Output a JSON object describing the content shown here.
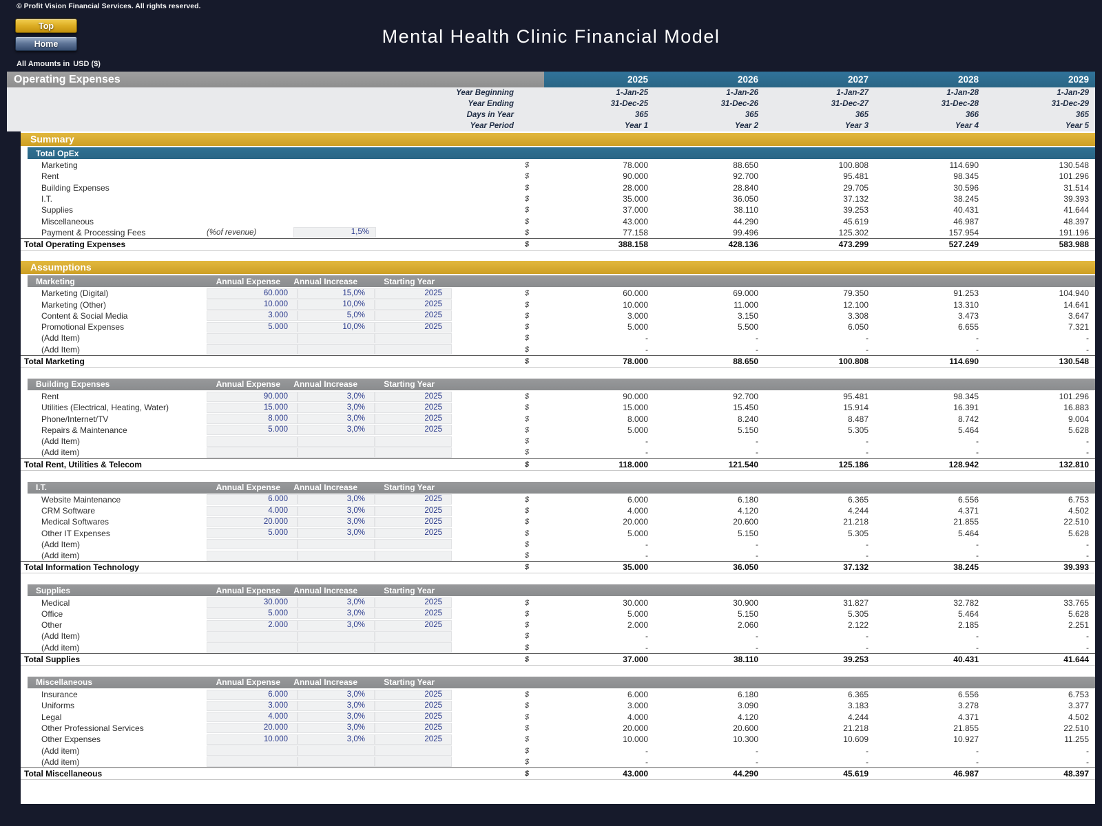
{
  "header": {
    "copyright": "© Profit Vision Financial Services. All rights reserved.",
    "title": "Mental Health Clinic Financial Model",
    "buttons": [
      {
        "label": "Top"
      },
      {
        "label": "Home"
      }
    ],
    "amounts_note_prefix": "All Amounts in",
    "currency": "USD ($)"
  },
  "colors": {
    "navy_background": "#161a2b",
    "gold_section_bar": "#d4a62c",
    "teal_bar": "#2d6d8e",
    "gray_bar": "#8f9193",
    "year_band_gray": "#e9eaec",
    "input_cell_fill": "#f0f1f2",
    "input_text_blue": "#29398c",
    "top_button_gold": "#ddae24",
    "home_button_blue": "#5f7598"
  },
  "sheet": {
    "section_title": "Operating Expenses",
    "currency_symbol": "$",
    "years": [
      "2025",
      "2026",
      "2027",
      "2028",
      "2029"
    ],
    "year_info_rows": [
      {
        "label": "Year Beginning",
        "values": [
          "1-Jan-25",
          "1-Jan-26",
          "1-Jan-27",
          "1-Jan-28",
          "1-Jan-29"
        ]
      },
      {
        "label": "Year Ending",
        "values": [
          "31-Dec-25",
          "31-Dec-26",
          "31-Dec-27",
          "31-Dec-28",
          "31-Dec-29"
        ]
      },
      {
        "label": "Days in Year",
        "values": [
          "365",
          "365",
          "365",
          "366",
          "365"
        ]
      },
      {
        "label": "Year Period",
        "values": [
          "Year 1",
          "Year 2",
          "Year 3",
          "Year 4",
          "Year 5"
        ]
      }
    ],
    "summary": {
      "title": "Summary",
      "subheader": "Total OpEx",
      "rows": [
        {
          "label": "Marketing",
          "values": [
            "78.000",
            "88.650",
            "100.808",
            "114.690",
            "130.548"
          ]
        },
        {
          "label": "Rent",
          "values": [
            "90.000",
            "92.700",
            "95.481",
            "98.345",
            "101.296"
          ]
        },
        {
          "label": "Building Expenses",
          "values": [
            "28.000",
            "28.840",
            "29.705",
            "30.596",
            "31.514"
          ]
        },
        {
          "label": "I.T.",
          "values": [
            "35.000",
            "36.050",
            "37.132",
            "38.245",
            "39.393"
          ]
        },
        {
          "label": "Supplies",
          "values": [
            "37.000",
            "38.110",
            "39.253",
            "40.431",
            "41.644"
          ]
        },
        {
          "label": "Miscellaneous",
          "values": [
            "43.000",
            "44.290",
            "45.619",
            "46.987",
            "48.397"
          ]
        },
        {
          "label": "Payment & Processing Fees",
          "note": "(%of revenue)",
          "input": "1,5%",
          "values": [
            "77.158",
            "99.496",
            "125.302",
            "157.954",
            "191.196"
          ]
        }
      ],
      "total": {
        "label": "Total Operating Expenses",
        "values": [
          "388.158",
          "428.136",
          "473.299",
          "527.249",
          "583.988"
        ]
      }
    },
    "assumptions_title": "Assumptions",
    "input_columns": [
      "Annual Expense",
      "Annual Increase",
      "Starting Year"
    ],
    "groups": [
      {
        "name": "Marketing",
        "rows": [
          {
            "label": "Marketing (Digital)",
            "inputs": [
              "60.000",
              "15,0%",
              "2025"
            ],
            "values": [
              "60.000",
              "69.000",
              "79.350",
              "91.253",
              "104.940"
            ]
          },
          {
            "label": "Marketing (Other)",
            "inputs": [
              "10.000",
              "10,0%",
              "2025"
            ],
            "values": [
              "10.000",
              "11.000",
              "12.100",
              "13.310",
              "14.641"
            ]
          },
          {
            "label": "Content & Social Media",
            "inputs": [
              "3.000",
              "5,0%",
              "2025"
            ],
            "values": [
              "3.000",
              "3.150",
              "3.308",
              "3.473",
              "3.647"
            ]
          },
          {
            "label": "Promotional Expenses",
            "inputs": [
              "5.000",
              "10,0%",
              "2025"
            ],
            "values": [
              "5.000",
              "5.500",
              "6.050",
              "6.655",
              "7.321"
            ]
          },
          {
            "label": "(Add Item)",
            "inputs": [
              "",
              "",
              ""
            ],
            "values": [
              "-",
              "-",
              "-",
              "-",
              "-"
            ]
          },
          {
            "label": "(Add Item)",
            "inputs": [
              "",
              "",
              ""
            ],
            "values": [
              "-",
              "-",
              "-",
              "-",
              "-"
            ]
          }
        ],
        "total": {
          "label": "Total Marketing",
          "values": [
            "78.000",
            "88.650",
            "100.808",
            "114.690",
            "130.548"
          ]
        }
      },
      {
        "name": "Building Expenses",
        "rows": [
          {
            "label": "Rent",
            "inputs": [
              "90.000",
              "3,0%",
              "2025"
            ],
            "values": [
              "90.000",
              "92.700",
              "95.481",
              "98.345",
              "101.296"
            ]
          },
          {
            "label": "Utilities (Electrical, Heating, Water)",
            "inputs": [
              "15.000",
              "3,0%",
              "2025"
            ],
            "values": [
              "15.000",
              "15.450",
              "15.914",
              "16.391",
              "16.883"
            ]
          },
          {
            "label": "Phone/Internet/TV",
            "inputs": [
              "8.000",
              "3,0%",
              "2025"
            ],
            "values": [
              "8.000",
              "8.240",
              "8.487",
              "8.742",
              "9.004"
            ]
          },
          {
            "label": "Repairs & Maintenance",
            "inputs": [
              "5.000",
              "3,0%",
              "2025"
            ],
            "values": [
              "5.000",
              "5.150",
              "5.305",
              "5.464",
              "5.628"
            ]
          },
          {
            "label": "(Add Item)",
            "inputs": [
              "",
              "",
              ""
            ],
            "values": [
              "-",
              "-",
              "-",
              "-",
              "-"
            ]
          },
          {
            "label": "(Add item)",
            "inputs": [
              "",
              "",
              ""
            ],
            "values": [
              "-",
              "-",
              "-",
              "-",
              "-"
            ]
          }
        ],
        "total": {
          "label": "Total Rent, Utilities & Telecom",
          "values": [
            "118.000",
            "121.540",
            "125.186",
            "128.942",
            "132.810"
          ]
        }
      },
      {
        "name": "I.T.",
        "rows": [
          {
            "label": "Website Maintenance",
            "inputs": [
              "6.000",
              "3,0%",
              "2025"
            ],
            "values": [
              "6.000",
              "6.180",
              "6.365",
              "6.556",
              "6.753"
            ]
          },
          {
            "label": "CRM Software",
            "inputs": [
              "4.000",
              "3,0%",
              "2025"
            ],
            "values": [
              "4.000",
              "4.120",
              "4.244",
              "4.371",
              "4.502"
            ]
          },
          {
            "label": "Medical Softwares",
            "inputs": [
              "20.000",
              "3,0%",
              "2025"
            ],
            "values": [
              "20.000",
              "20.600",
              "21.218",
              "21.855",
              "22.510"
            ]
          },
          {
            "label": "Other IT Expenses",
            "inputs": [
              "5.000",
              "3,0%",
              "2025"
            ],
            "values": [
              "5.000",
              "5.150",
              "5.305",
              "5.464",
              "5.628"
            ]
          },
          {
            "label": "(Add Item)",
            "inputs": [
              "",
              "",
              ""
            ],
            "values": [
              "-",
              "-",
              "-",
              "-",
              "-"
            ]
          },
          {
            "label": "(Add item)",
            "inputs": [
              "",
              "",
              ""
            ],
            "values": [
              "-",
              "-",
              "-",
              "-",
              "-"
            ]
          }
        ],
        "total": {
          "label": "Total Information Technology",
          "values": [
            "35.000",
            "36.050",
            "37.132",
            "38.245",
            "39.393"
          ]
        }
      },
      {
        "name": "Supplies",
        "rows": [
          {
            "label": "Medical",
            "inputs": [
              "30.000",
              "3,0%",
              "2025"
            ],
            "values": [
              "30.000",
              "30.900",
              "31.827",
              "32.782",
              "33.765"
            ]
          },
          {
            "label": "Office",
            "inputs": [
              "5.000",
              "3,0%",
              "2025"
            ],
            "values": [
              "5.000",
              "5.150",
              "5.305",
              "5.464",
              "5.628"
            ]
          },
          {
            "label": "Other",
            "inputs": [
              "2.000",
              "3,0%",
              "2025"
            ],
            "values": [
              "2.000",
              "2.060",
              "2.122",
              "2.185",
              "2.251"
            ]
          },
          {
            "label": "(Add Item)",
            "inputs": [
              "",
              "",
              ""
            ],
            "values": [
              "-",
              "-",
              "-",
              "-",
              "-"
            ]
          },
          {
            "label": "(Add item)",
            "inputs": [
              "",
              "",
              ""
            ],
            "values": [
              "-",
              "-",
              "-",
              "-",
              "-"
            ]
          }
        ],
        "total": {
          "label": "Total Supplies",
          "values": [
            "37.000",
            "38.110",
            "39.253",
            "40.431",
            "41.644"
          ]
        }
      },
      {
        "name": "Miscellaneous",
        "rows": [
          {
            "label": "Insurance",
            "inputs": [
              "6.000",
              "3,0%",
              "2025"
            ],
            "values": [
              "6.000",
              "6.180",
              "6.365",
              "6.556",
              "6.753"
            ]
          },
          {
            "label": "Uniforms",
            "inputs": [
              "3.000",
              "3,0%",
              "2025"
            ],
            "values": [
              "3.000",
              "3.090",
              "3.183",
              "3.278",
              "3.377"
            ]
          },
          {
            "label": "Legal",
            "inputs": [
              "4.000",
              "3,0%",
              "2025"
            ],
            "values": [
              "4.000",
              "4.120",
              "4.244",
              "4.371",
              "4.502"
            ]
          },
          {
            "label": "Other Professional Services",
            "inputs": [
              "20.000",
              "3,0%",
              "2025"
            ],
            "values": [
              "20.000",
              "20.600",
              "21.218",
              "21.855",
              "22.510"
            ]
          },
          {
            "label": "Other Expenses",
            "inputs": [
              "10.000",
              "3,0%",
              "2025"
            ],
            "values": [
              "10.000",
              "10.300",
              "10.609",
              "10.927",
              "11.255"
            ]
          },
          {
            "label": "(Add item)",
            "inputs": [
              "",
              "",
              ""
            ],
            "values": [
              "-",
              "-",
              "-",
              "-",
              "-"
            ]
          },
          {
            "label": "(Add item)",
            "inputs": [
              "",
              "",
              ""
            ],
            "values": [
              "-",
              "-",
              "-",
              "-",
              "-"
            ]
          }
        ],
        "total": {
          "label": "Total Miscellaneous",
          "values": [
            "43.000",
            "44.290",
            "45.619",
            "46.987",
            "48.397"
          ]
        }
      }
    ]
  }
}
